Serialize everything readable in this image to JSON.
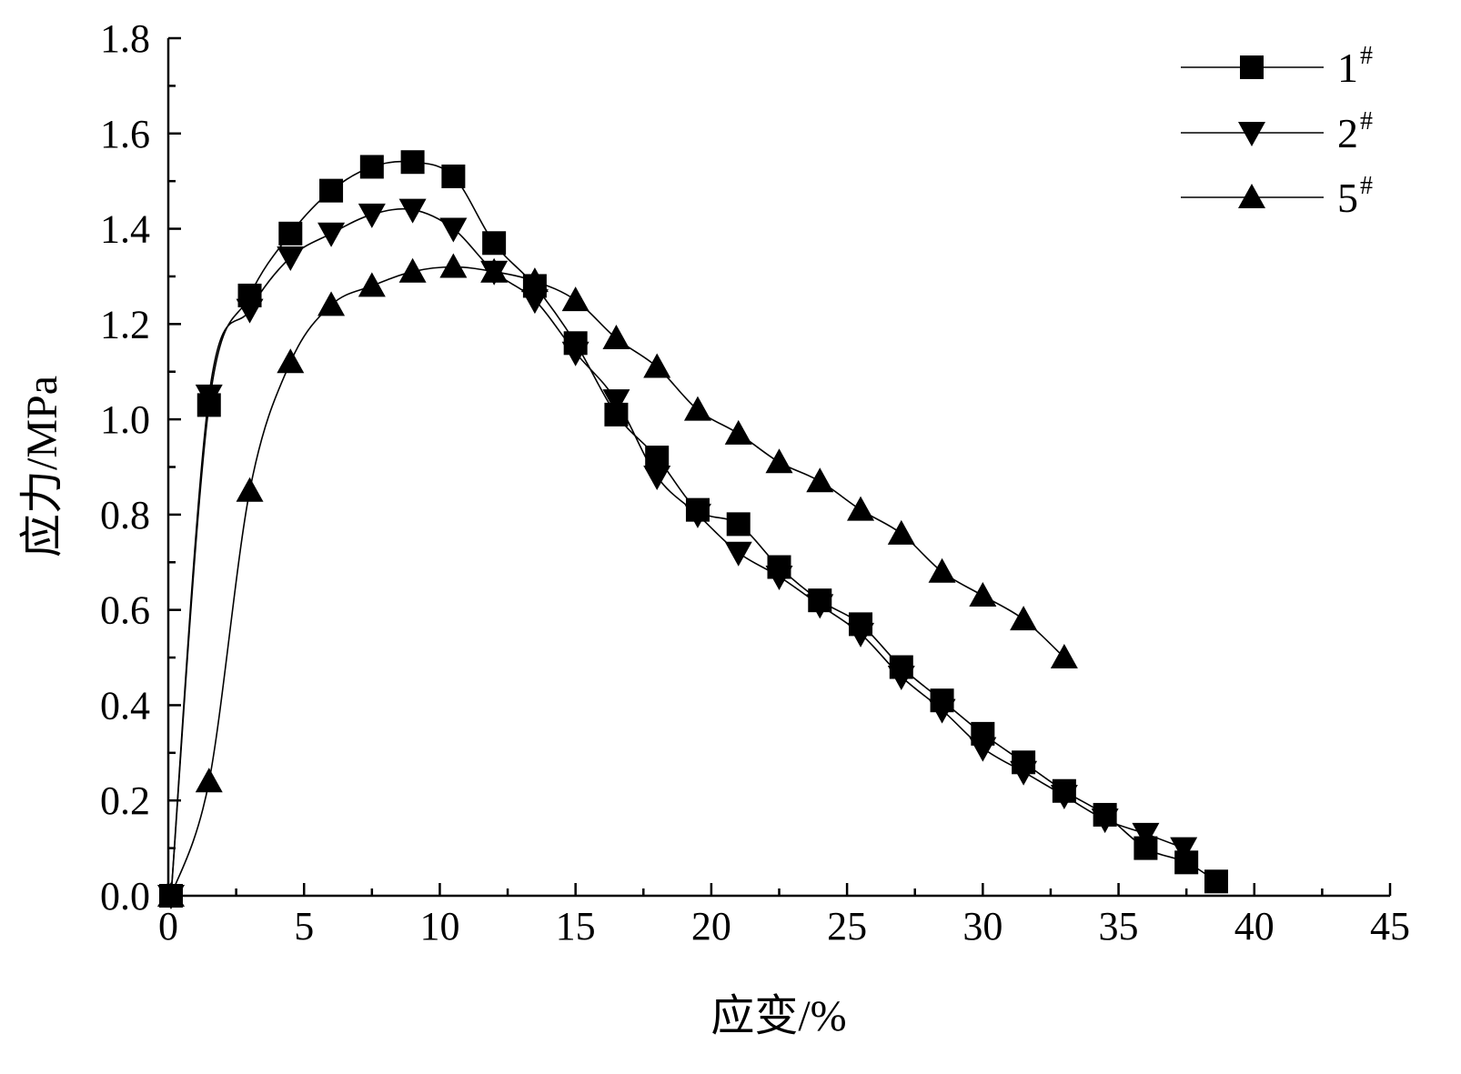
{
  "chart_data": {
    "type": "line",
    "xlabel": "应变/%",
    "ylabel": "应力/MPa",
    "xlim": [
      0,
      45
    ],
    "ylim": [
      0,
      1.8
    ],
    "x_ticks": [
      "0",
      "5",
      "10",
      "15",
      "20",
      "25",
      "30",
      "35",
      "40",
      "45"
    ],
    "y_ticks": [
      "0.0",
      "0.2",
      "0.4",
      "0.6",
      "0.8",
      "1.0",
      "1.2",
      "1.4",
      "1.6",
      "1.8"
    ],
    "grid": false,
    "legend_position": "top-right",
    "series": [
      {
        "name": "1",
        "name_sup": "#",
        "marker": "square",
        "x": [
          0.1,
          1.5,
          3,
          4.5,
          6,
          7.5,
          9,
          10.5,
          12,
          13.5,
          15,
          16.5,
          18,
          19.5,
          21,
          22.5,
          24,
          25.5,
          27,
          28.5,
          30,
          31.5,
          33,
          34.5,
          36,
          37.5,
          38.6
        ],
        "y": [
          0.0,
          1.03,
          1.26,
          1.39,
          1.48,
          1.53,
          1.54,
          1.51,
          1.37,
          1.28,
          1.16,
          1.01,
          0.92,
          0.81,
          0.78,
          0.69,
          0.62,
          0.57,
          0.48,
          0.41,
          0.34,
          0.28,
          0.22,
          0.17,
          0.1,
          0.07,
          0.03
        ]
      },
      {
        "name": "2",
        "name_sup": "#",
        "marker": "triangle-down",
        "x": [
          0.1,
          1.5,
          3,
          4.5,
          6,
          7.5,
          9,
          10.5,
          12,
          13.5,
          15,
          16.5,
          18,
          19.5,
          21,
          22.5,
          24,
          25.5,
          27,
          28.5,
          30,
          31.5,
          33,
          34.5,
          36,
          37.4
        ],
        "y": [
          0.0,
          1.05,
          1.23,
          1.34,
          1.39,
          1.43,
          1.44,
          1.4,
          1.31,
          1.25,
          1.14,
          1.04,
          0.88,
          0.8,
          0.72,
          0.67,
          0.61,
          0.55,
          0.46,
          0.39,
          0.31,
          0.26,
          0.21,
          0.16,
          0.13,
          0.1
        ]
      },
      {
        "name": "5",
        "name_sup": "#",
        "marker": "triangle-up",
        "x": [
          0.1,
          1.5,
          3,
          4.5,
          6,
          7.5,
          9,
          10.5,
          12,
          13.5,
          15,
          16.5,
          18,
          19.5,
          21,
          22.5,
          24,
          25.5,
          27,
          28.5,
          30,
          31.5,
          33
        ],
        "y": [
          0.0,
          0.24,
          0.85,
          1.12,
          1.24,
          1.28,
          1.31,
          1.32,
          1.31,
          1.29,
          1.25,
          1.17,
          1.11,
          1.02,
          0.97,
          0.91,
          0.87,
          0.81,
          0.76,
          0.68,
          0.63,
          0.58,
          0.5
        ]
      }
    ]
  }
}
